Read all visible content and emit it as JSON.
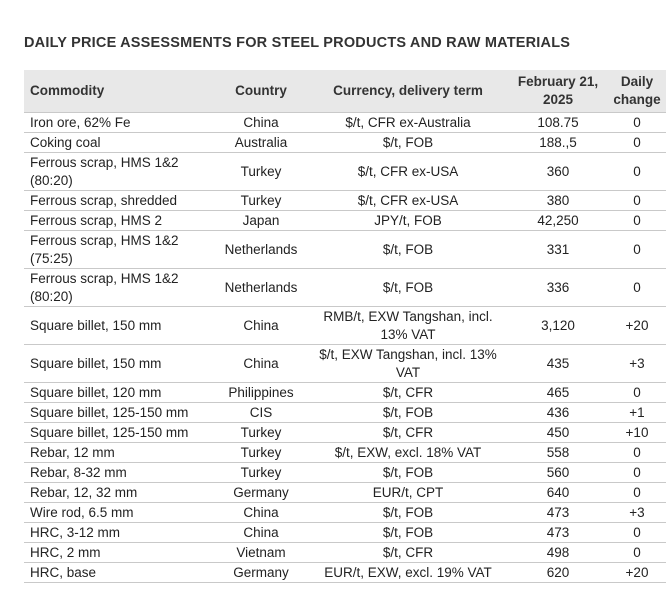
{
  "title": "DAILY PRICE ASSESSMENTS FOR STEEL PRODUCTS AND RAW MATERIALS",
  "table": {
    "headers": {
      "commodity": "Commodity",
      "country": "Country",
      "currency": "Currency, delivery term",
      "date_line1": "February 21,",
      "date_line2": "2025",
      "change_line1": "Daily",
      "change_line2": "change"
    },
    "rows": [
      {
        "commodity": "Iron ore, 62% Fe",
        "country": "China",
        "currency": "$/t, CFR ex-Australia",
        "price": "108.75",
        "change": "0"
      },
      {
        "commodity": "Coking coal",
        "country": "Australia",
        "currency": "$/t, FOB",
        "price": "188.,5",
        "change": "0"
      },
      {
        "commodity": "Ferrous scrap, HMS 1&2 (80:20)",
        "country": "Turkey",
        "currency": "$/t, CFR ex-USA",
        "price": "360",
        "change": "0"
      },
      {
        "commodity": "Ferrous scrap, shredded",
        "country": "Turkey",
        "currency": "$/t, CFR ex-USA",
        "price": "380",
        "change": "0"
      },
      {
        "commodity": "Ferrous scrap, HMS 2",
        "country": "Japan",
        "currency": "JPY/t, FOB",
        "price": "42,250",
        "change": "0"
      },
      {
        "commodity": "Ferrous scrap, HMS 1&2 (75:25)",
        "country": "Netherlands",
        "currency": "$/t, FOB",
        "price": "331",
        "change": "0"
      },
      {
        "commodity": "Ferrous scrap, HMS 1&2 (80:20)",
        "country": "Netherlands",
        "currency": "$/t, FOB",
        "price": "336",
        "change": "0"
      },
      {
        "commodity": "Square billet, 150 mm",
        "country": "China",
        "currency": "RMB/t, EXW Tangshan, incl. 13% VAT",
        "price": "3,120",
        "change": "+20"
      },
      {
        "commodity": "Square billet, 150 mm",
        "country": "China",
        "currency": "$/t, EXW Tangshan, incl. 13% VAT",
        "price": "435",
        "change": "+3"
      },
      {
        "commodity": "Square billet, 120 mm",
        "country": "Philippines",
        "currency": "$/t, CFR",
        "price": "465",
        "change": "0"
      },
      {
        "commodity": "Square billet, 125-150 mm",
        "country": "CIS",
        "currency": "$/t, FOB",
        "price": "436",
        "change": "+1"
      },
      {
        "commodity": "Square billet, 125-150 mm",
        "country": "Turkey",
        "currency": "$/t, CFR",
        "price": "450",
        "change": "+10"
      },
      {
        "commodity": "Rebar, 12 mm",
        "country": "Turkey",
        "currency": "$/t, EXW, excl. 18% VAT",
        "price": "558",
        "change": "0"
      },
      {
        "commodity": "Rebar, 8-32 mm",
        "country": "Turkey",
        "currency": "$/t, FOB",
        "price": "560",
        "change": "0"
      },
      {
        "commodity": "Rebar, 12, 32 mm",
        "country": "Germany",
        "currency": "EUR/t, CPT",
        "price": "640",
        "change": "0"
      },
      {
        "commodity": "Wire rod, 6.5 mm",
        "country": "China",
        "currency": "$/t, FOB",
        "price": "473",
        "change": "+3"
      },
      {
        "commodity": "HRC, 3-12 mm",
        "country": "China",
        "currency": "$/t, FOB",
        "price": "473",
        "change": "0"
      },
      {
        "commodity": "HRC, 2 mm",
        "country": "Vietnam",
        "currency": "$/t, CFR",
        "price": "498",
        "change": "0"
      },
      {
        "commodity": "HRC, base",
        "country": "Germany",
        "currency": "EUR/t, EXW, excl. 19% VAT",
        "price": "620",
        "change": "+20"
      }
    ]
  }
}
